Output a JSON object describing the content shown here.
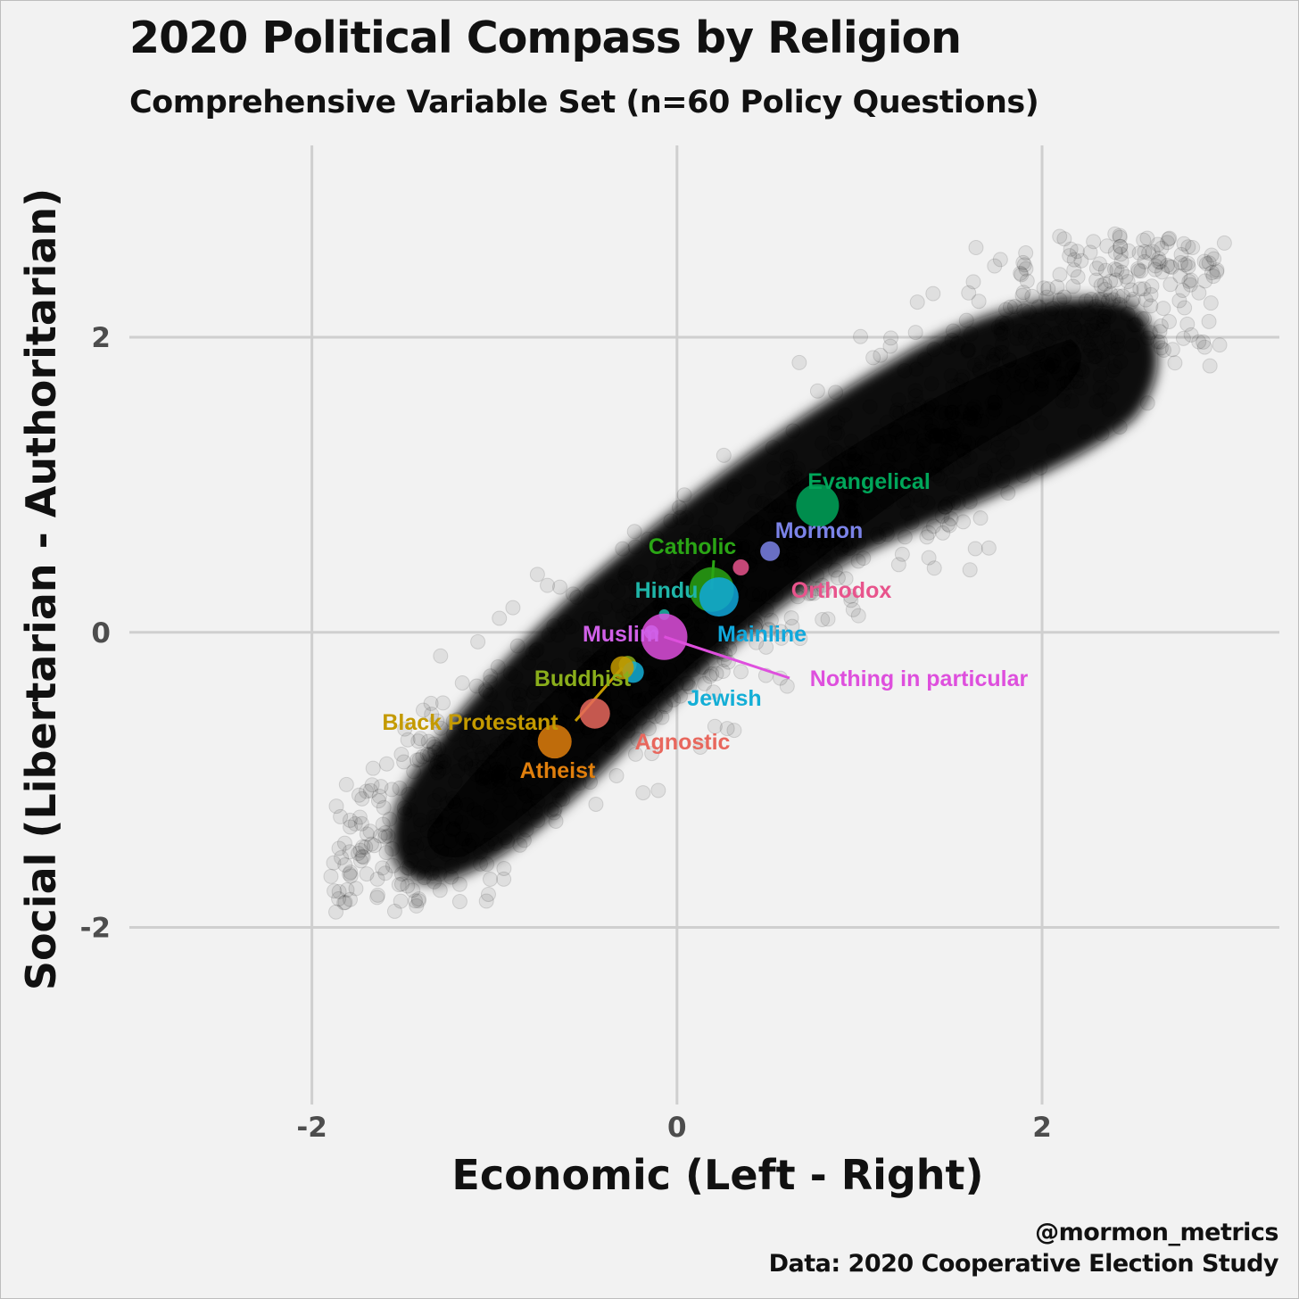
{
  "title": "2020 Political Compass by Religion",
  "subtitle": "Comprehensive Variable Set (n=60 Policy Questions)",
  "caption": {
    "handle": "@mormon_metrics",
    "source": "Data: 2020 Cooperative Election Study"
  },
  "chart_data": {
    "type": "scatter",
    "xlabel": "Economic (Left - Right)",
    "ylabel": "Social (Libertarian - Authoritarian)",
    "xlim": [
      -3.0,
      3.3
    ],
    "ylim": [
      -3.2,
      3.3
    ],
    "x_ticks": [
      -2,
      0,
      2
    ],
    "y_ticks": [
      -2,
      0,
      2
    ],
    "x_tick_labels": [
      "-2",
      "0",
      "2"
    ],
    "y_tick_labels": [
      "-2",
      "0",
      "2"
    ],
    "grid": true,
    "background_cloud": "individual respondents, semi-transparent black points along the diagonal from about (-1.8, -1.8) to (2.8, 2.6)",
    "series": [
      {
        "name": "Evangelical",
        "x": 0.77,
        "y": 0.86,
        "size": 24,
        "color": "#00a65a"
      },
      {
        "name": "Mormon",
        "x": 0.51,
        "y": 0.55,
        "size": 11,
        "color": "#7b83e8"
      },
      {
        "name": "Orthodox",
        "x": 0.35,
        "y": 0.44,
        "size": 9,
        "color": "#e8548c"
      },
      {
        "name": "Catholic",
        "x": 0.19,
        "y": 0.29,
        "size": 25,
        "color": "#2aa515"
      },
      {
        "name": "Mainline",
        "x": 0.23,
        "y": 0.24,
        "size": 22,
        "color": "#10a8dc"
      },
      {
        "name": "Hindu",
        "x": -0.07,
        "y": 0.12,
        "size": 6,
        "color": "#1fb5a8"
      },
      {
        "name": "Nothing in particular",
        "x": -0.07,
        "y": -0.03,
        "size": 26,
        "color": "#de4fdd"
      },
      {
        "name": "Muslim",
        "x": -0.14,
        "y": 0.0,
        "size": 8,
        "color": "#d060e8"
      },
      {
        "name": "Buddhist",
        "x": -0.27,
        "y": -0.22,
        "size": 10,
        "color": "#8aae1b"
      },
      {
        "name": "Jewish",
        "x": -0.24,
        "y": -0.27,
        "size": 12,
        "color": "#14aed6"
      },
      {
        "name": "Black Protestant",
        "x": -0.3,
        "y": -0.24,
        "size": 13,
        "color": "#c49a00"
      },
      {
        "name": "Agnostic",
        "x": -0.45,
        "y": -0.55,
        "size": 17,
        "color": "#e8675d"
      },
      {
        "name": "Atheist",
        "x": -0.67,
        "y": -0.74,
        "size": 19,
        "color": "#e07f0d"
      }
    ]
  }
}
